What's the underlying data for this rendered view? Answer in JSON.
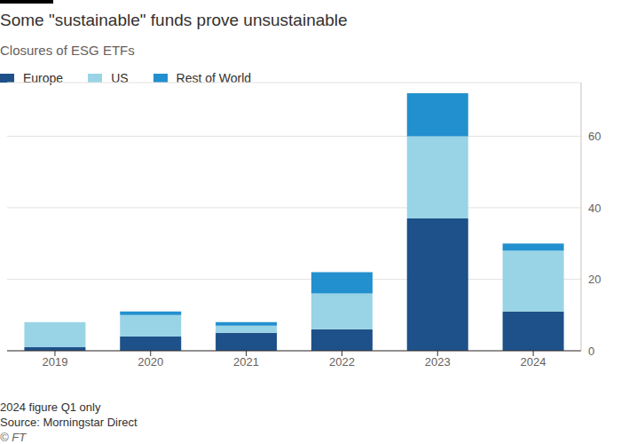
{
  "chart_data": {
    "type": "bar",
    "title": "Some \"sustainable\" funds prove unsustainable",
    "subtitle": "Closures of ESG ETFs",
    "annotations": [
      "2024 figure Q1 only",
      "Source: Morningstar Direct",
      "© FT"
    ],
    "categories": [
      "2019",
      "2020",
      "2021",
      "2022",
      "2023",
      "2024"
    ],
    "series": [
      {
        "name": "Europe",
        "color": "#1e5189",
        "values": [
          1,
          4,
          5,
          6,
          37,
          11
        ]
      },
      {
        "name": "US",
        "color": "#98d4e6",
        "values": [
          7,
          6,
          2,
          10,
          23,
          17
        ]
      },
      {
        "name": "Rest of World",
        "color": "#2290ce",
        "values": [
          0,
          1,
          1,
          6,
          12,
          2
        ]
      }
    ],
    "ylim": [
      0,
      75
    ],
    "yticks": [
      0,
      20,
      40,
      60
    ],
    "grid": true,
    "stacked": true,
    "legend": "top-left"
  }
}
